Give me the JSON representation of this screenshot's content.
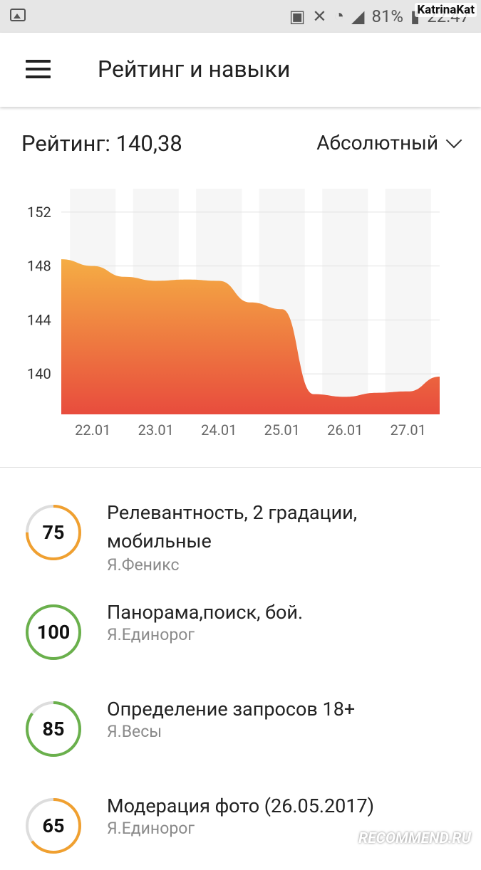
{
  "status": {
    "battery": "81%",
    "time": "22:47",
    "watermark": "KatrinaKat"
  },
  "appbar": {
    "title": "Рейтинг и навыки"
  },
  "rating": {
    "label": "Рейтинг: 140,38",
    "mode": "Абсолютный"
  },
  "chart_data": {
    "type": "area",
    "categories": [
      "22.01",
      "23.01",
      "24.01",
      "25.01",
      "26.01",
      "27.01"
    ],
    "x": [
      0,
      0.5,
      1,
      1.5,
      2,
      2.5,
      3,
      3.5,
      4,
      4.5,
      5,
      5.5,
      6
    ],
    "values": [
      148.5,
      148.0,
      147.2,
      146.9,
      147.0,
      146.9,
      145.3,
      144.8,
      138.5,
      138.3,
      138.6,
      138.7,
      139.8
    ],
    "yticks": [
      140,
      144,
      148,
      152
    ],
    "ylim": [
      137,
      154
    ],
    "grid": true,
    "colors": {
      "top": "#f5ad44",
      "bottom": "#e84c3d"
    }
  },
  "skills": [
    {
      "score": "75",
      "value": 75,
      "title": "Релевантность, 2 градации, мобильные",
      "team": "Я.Феникс",
      "color": "#f0a030"
    },
    {
      "score": "100",
      "value": 100,
      "title": "Панорама,поиск, бой.",
      "team": "Я.Единорог",
      "color": "#6ab04c"
    },
    {
      "score": "85",
      "value": 85,
      "title": "Определение запросов 18+",
      "team": "Я.Весы",
      "color": "#6ab04c"
    },
    {
      "score": "65",
      "value": 65,
      "title": "Модерация фото (26.05.2017)",
      "team": "Я.Единорог",
      "color": "#f0a030"
    }
  ],
  "footer": {
    "watermark": "RECOMMEND.RU"
  }
}
